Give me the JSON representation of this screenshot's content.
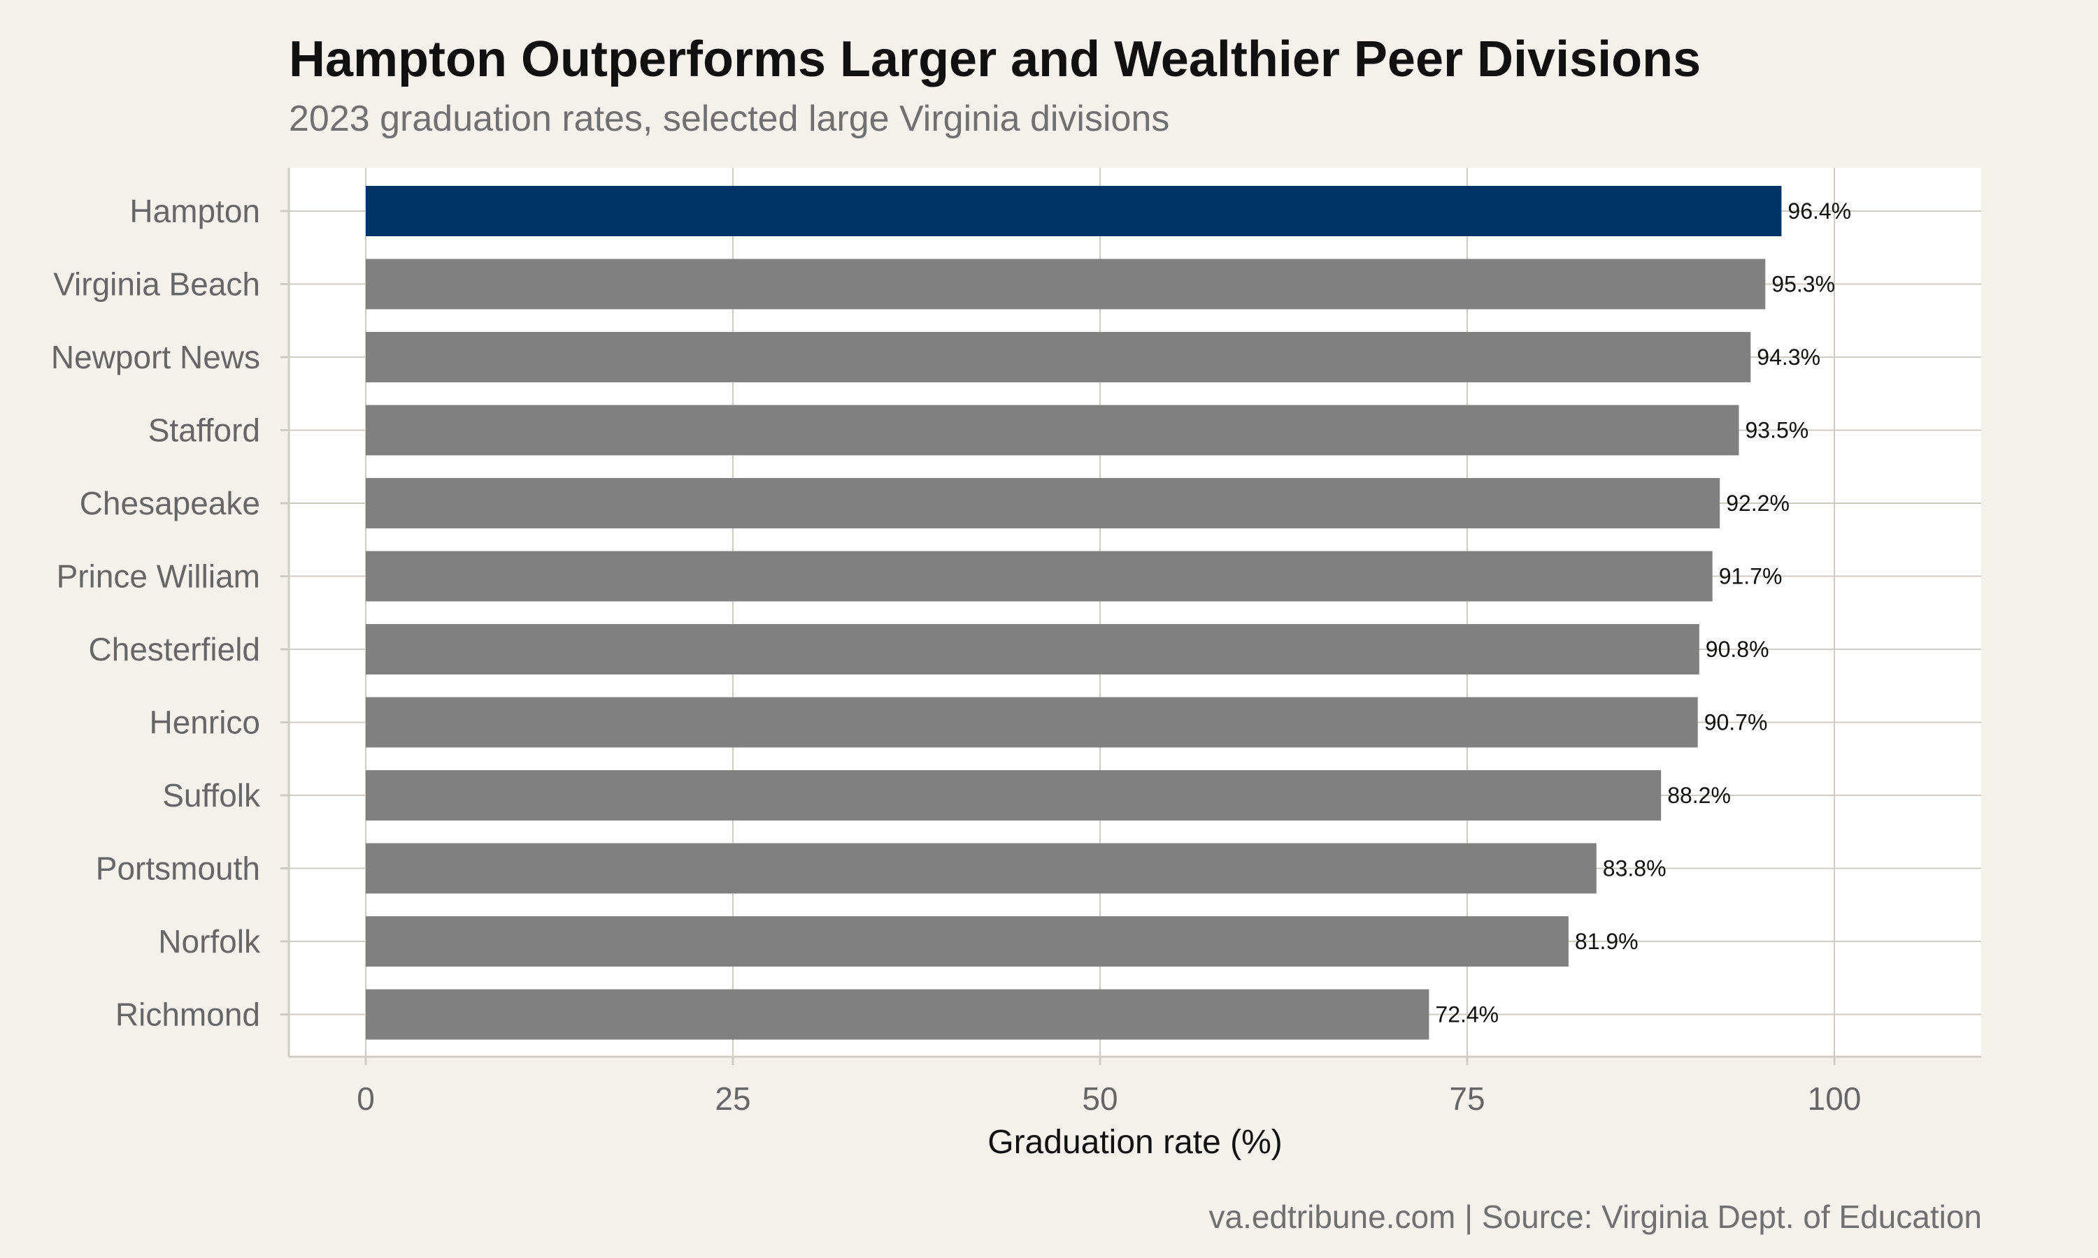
{
  "chart_data": {
    "type": "bar",
    "orientation": "horizontal",
    "title": "Hampton Outperforms Larger and Wealthier Peer Divisions",
    "subtitle": "2023 graduation rates, selected large Virginia divisions",
    "xlabel": "Graduation rate (%)",
    "ylabel": "",
    "caption": "va.edtribune.com | Source: Virginia Dept. of Education",
    "categories": [
      "Hampton",
      "Virginia Beach",
      "Newport News",
      "Stafford",
      "Chesapeake",
      "Prince William",
      "Chesterfield",
      "Henrico",
      "Suffolk",
      "Portsmouth",
      "Norfolk",
      "Richmond"
    ],
    "values": [
      96.4,
      95.3,
      94.3,
      93.5,
      92.2,
      91.7,
      90.8,
      90.7,
      88.2,
      83.8,
      81.9,
      72.4
    ],
    "value_labels": [
      "96.4%",
      "95.3%",
      "94.3%",
      "93.5%",
      "92.2%",
      "91.7%",
      "90.8%",
      "90.7%",
      "88.2%",
      "83.8%",
      "81.9%",
      "72.4%"
    ],
    "highlight": "Hampton",
    "xlim": [
      0,
      110
    ],
    "xticks": [
      0,
      25,
      50,
      75,
      100
    ],
    "xtick_labels": [
      "0",
      "25",
      "50",
      "75",
      "100"
    ],
    "grid": true,
    "legend": "none",
    "colors": {
      "highlight": "#003366",
      "bar": "#808080",
      "panel": "#ffffff",
      "background": "#f4f1ec",
      "grid": "#cfccc6"
    }
  }
}
